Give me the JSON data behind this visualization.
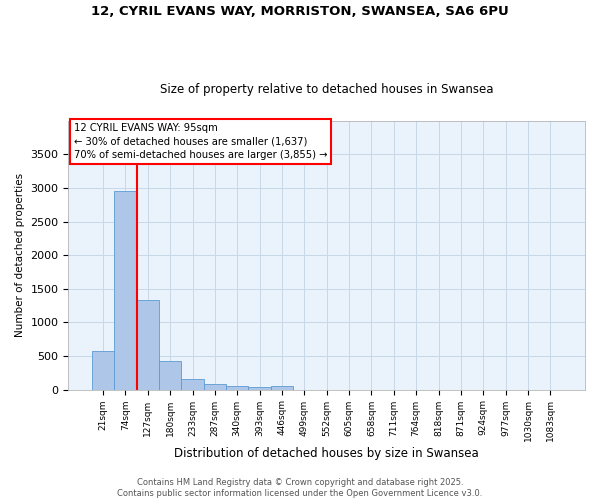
{
  "title1": "12, CYRIL EVANS WAY, MORRISTON, SWANSEA, SA6 6PU",
  "title2": "Size of property relative to detached houses in Swansea",
  "xlabel": "Distribution of detached houses by size in Swansea",
  "ylabel": "Number of detached properties",
  "categories": [
    "21sqm",
    "74sqm",
    "127sqm",
    "180sqm",
    "233sqm",
    "287sqm",
    "340sqm",
    "393sqm",
    "446sqm",
    "499sqm",
    "552sqm",
    "605sqm",
    "658sqm",
    "711sqm",
    "764sqm",
    "818sqm",
    "871sqm",
    "924sqm",
    "977sqm",
    "1030sqm",
    "1083sqm"
  ],
  "values": [
    580,
    2960,
    1330,
    420,
    165,
    80,
    55,
    35,
    50,
    0,
    0,
    0,
    0,
    0,
    0,
    0,
    0,
    0,
    0,
    0,
    0
  ],
  "bar_color": "#aec6e8",
  "bar_edge_color": "#5b9bd5",
  "grid_color": "#c8d8e8",
  "background_color": "#eaf2fb",
  "vline_color": "red",
  "annotation_text": "12 CYRIL EVANS WAY: 95sqm\n← 30% of detached houses are smaller (1,637)\n70% of semi-detached houses are larger (3,855) →",
  "annotation_box_color": "white",
  "annotation_box_edge": "red",
  "ylim": [
    0,
    4000
  ],
  "yticks": [
    0,
    500,
    1000,
    1500,
    2000,
    2500,
    3000,
    3500
  ],
  "footnote": "Contains HM Land Registry data © Crown copyright and database right 2025.\nContains public sector information licensed under the Open Government Licence v3.0."
}
